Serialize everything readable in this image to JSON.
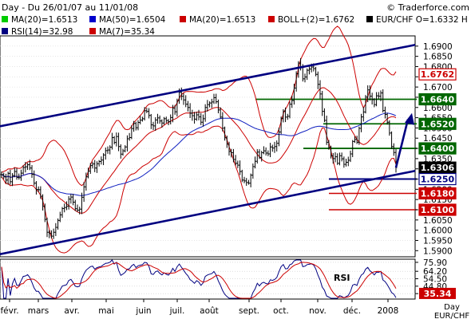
{
  "header": {
    "title": "Day - Du 26/01/07 au 11/01/08",
    "copyright": "© Traderforce.com"
  },
  "legend": [
    {
      "label": "MA(20)=1.6513",
      "color": "#00cc00"
    },
    {
      "label": "MA(50)=1.6504",
      "color": "#0000cc"
    },
    {
      "label": "MA(20)=1.6513",
      "color": "#cc0000"
    },
    {
      "label": "BOLL+(2)=1.6762",
      "color": "#cc0000"
    },
    {
      "label": "EUR/CHF O=1.6332 H",
      "color": "#000000"
    },
    {
      "label": "RSI(14)=32.98",
      "color": "#000080"
    },
    {
      "label": "MA(7)=35.34",
      "color": "#cc0000"
    }
  ],
  "footer": {
    "line1": "Day",
    "line2": "EUR/CHF"
  },
  "chart_data": {
    "type": "candlestick",
    "instrument": "EUR/CHF",
    "price_axis": {
      "ticks": [
        "1.6900",
        "1.6850",
        "1.6800",
        "1.6750",
        "1.6700",
        "1.6650",
        "1.6600",
        "1.6550",
        "1.6500",
        "1.6450",
        "1.6400",
        "1.6350",
        "1.6300",
        "1.6250",
        "1.6200",
        "1.6150",
        "1.6100",
        "1.6050",
        "1.6000",
        "1.5950",
        "1.5900"
      ],
      "range": [
        1.587,
        1.695
      ]
    },
    "x_labels": [
      "févr.",
      "mars",
      "avr.",
      "mai",
      "juin",
      "juil.",
      "août",
      "sept.",
      "oct.",
      "nov.",
      "déc.",
      "2008"
    ],
    "level_markers": [
      {
        "value": "1.6762",
        "color": "#cc0000",
        "style": "red-badge"
      },
      {
        "value": "1.6640",
        "color": "#006600",
        "style": "green-line"
      },
      {
        "value": "1.6520",
        "color": "#006600",
        "style": "green-line"
      },
      {
        "value": "1.6400",
        "color": "#006600",
        "style": "green-line"
      },
      {
        "value": "1.6306",
        "color": "#000000",
        "style": "black-badge"
      },
      {
        "value": "1.6250",
        "color": "#000080",
        "style": "navy-line"
      },
      {
        "value": "1.6180",
        "color": "#cc0000",
        "style": "red-line"
      },
      {
        "value": "1.6100",
        "color": "#cc0000",
        "style": "red-line"
      }
    ],
    "closes": [
      1.6272,
      1.6261,
      1.6245,
      1.6278,
      1.6237,
      1.6267,
      1.6287,
      1.6258,
      1.6257,
      1.6279,
      1.6307,
      1.631,
      1.632,
      1.6304,
      1.6273,
      1.623,
      1.6199,
      1.6198,
      1.6166,
      1.6117,
      1.6053,
      1.599,
      1.5984,
      1.5971,
      1.599,
      1.6014,
      1.6048,
      1.6075,
      1.6106,
      1.6111,
      1.6117,
      1.6152,
      1.6162,
      1.6137,
      1.6105,
      1.6098,
      1.6103,
      1.6161,
      1.6212,
      1.6261,
      1.6289,
      1.6316,
      1.6324,
      1.6304,
      1.6325,
      1.6336,
      1.6343,
      1.6368,
      1.6389,
      1.6392,
      1.6406,
      1.6453,
      1.6429,
      1.6458,
      1.6409,
      1.6372,
      1.6388,
      1.6407,
      1.6447,
      1.6453,
      1.6497,
      1.6522,
      1.6501,
      1.6527,
      1.6538,
      1.6545,
      1.6584,
      1.6581,
      1.6561,
      1.6515,
      1.651,
      1.6539,
      1.6549,
      1.6534,
      1.6524,
      1.6545,
      1.6536,
      1.6531,
      1.6551,
      1.6596,
      1.6579,
      1.6634,
      1.6674,
      1.6655,
      1.6637,
      1.6616,
      1.66,
      1.6572,
      1.656,
      1.6543,
      1.6564,
      1.6554,
      1.6528,
      1.6545,
      1.66,
      1.6614,
      1.6622,
      1.6627,
      1.6648,
      1.6628,
      1.6588,
      1.6553,
      1.6499,
      1.6452,
      1.6421,
      1.6385,
      1.6379,
      1.6346,
      1.6327,
      1.6318,
      1.6287,
      1.6245,
      1.6241,
      1.6233,
      1.623,
      1.6269,
      1.6311,
      1.6337,
      1.6382,
      1.6356,
      1.6379,
      1.6388,
      1.6377,
      1.6373,
      1.6407,
      1.6402,
      1.6409,
      1.6425,
      1.648,
      1.6547,
      1.6582,
      1.6553,
      1.6557,
      1.6616,
      1.6634,
      1.6695,
      1.6765,
      1.6817,
      1.6799,
      1.674,
      1.6749,
      1.6782,
      1.6788,
      1.6798,
      1.679,
      1.6762,
      1.6713,
      1.6666,
      1.6581,
      1.6537,
      1.643,
      1.6405,
      1.6364,
      1.635,
      1.6359,
      1.6327,
      1.6364,
      1.6349,
      1.6322,
      1.6332,
      1.6342,
      1.6373,
      1.6434,
      1.6444,
      1.643,
      1.6498,
      1.6554,
      1.6578,
      1.6651,
      1.6686,
      1.6655,
      1.6638,
      1.6614,
      1.6657,
      1.6655,
      1.6671,
      1.6585,
      1.6566,
      1.6528,
      1.6475,
      1.6409,
      1.638,
      1.6306
    ],
    "overlays": [
      "MA(20)",
      "MA(50)",
      "BOLL(20,2)"
    ],
    "trend_channel": {
      "upper": [
        [
          1.5935,
          1.6508
        ],
        [
          1.63,
          1.6906
        ]
      ],
      "lower": [
        [
          1.552,
          1.5883
        ],
        [
          1.63,
          1.629
        ]
      ]
    },
    "rsi_panel": {
      "label": "RSI",
      "ticks": [
        "75.90",
        "64.20",
        "54.50",
        "44.80",
        "35.10"
      ],
      "range": [
        28,
        80
      ],
      "latest_badge": "35.34"
    }
  }
}
